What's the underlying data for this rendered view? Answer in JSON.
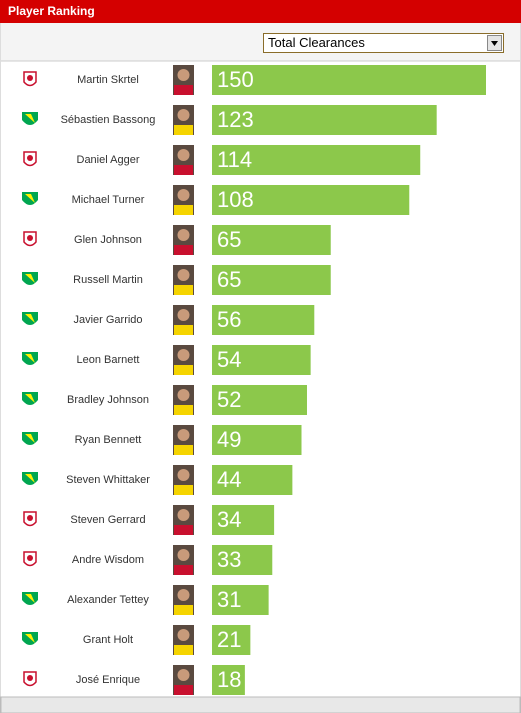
{
  "header": {
    "title": "Player Ranking"
  },
  "selector": {
    "selected": "Total Clearances"
  },
  "chart_data": {
    "type": "bar",
    "orientation": "horizontal",
    "color": "#8cc84b",
    "categories": [
      "Martin Skrtel",
      "Sébastien Bassong",
      "Daniel Agger",
      "Michael Turner",
      "Glen Johnson",
      "Russell Martin",
      "Javier Garrido",
      "Leon Barnett",
      "Bradley Johnson",
      "Ryan Bennett",
      "Steven Whittaker",
      "Steven Gerrard",
      "Andre Wisdom",
      "Alexander Tettey",
      "Grant Holt",
      "José Enrique"
    ],
    "values": [
      150,
      123,
      114,
      108,
      65,
      65,
      56,
      54,
      52,
      49,
      44,
      34,
      33,
      31,
      21,
      18
    ]
  }
}
